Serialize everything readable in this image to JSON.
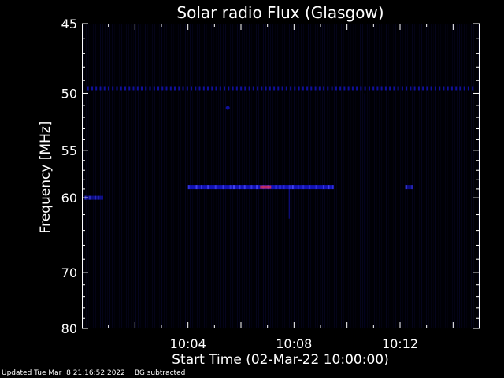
{
  "chart_data": {
    "type": "heatmap",
    "title": "Solar radio Flux (Glasgow)",
    "xlabel": "Start Time (02-Mar-22 10:00:00)",
    "ylabel": "Frequency [MHz]",
    "x_start_minutes": 0,
    "x_end_minutes": 15,
    "x_tick_minutes": [
      4,
      8,
      12
    ],
    "x_ticks": [
      "10:04",
      "10:08",
      "10:12"
    ],
    "y_scale": "reciprocal",
    "ylim": [
      45,
      80
    ],
    "y_ticks": [
      45,
      50,
      55,
      60,
      70,
      80
    ],
    "background_color": "#000005",
    "signal_colors": {
      "low": "#1a1aff",
      "high": "#ff3040"
    },
    "features": [
      {
        "kind": "periodic-band",
        "frequency_mhz": 49.6,
        "t_start": 0.2,
        "t_end": 14.8,
        "intensity": 0.6
      },
      {
        "kind": "band",
        "frequency_mhz": 58.8,
        "t_start": 4.0,
        "t_end": 9.5,
        "intensity": 0.7,
        "peak_minute": 6.9
      },
      {
        "kind": "band",
        "frequency_mhz": 58.8,
        "t_start": 12.2,
        "t_end": 12.5,
        "intensity": 0.5
      },
      {
        "kind": "band",
        "frequency_mhz": 60.0,
        "t_start": 0.1,
        "t_end": 0.8,
        "intensity": 0.5
      },
      {
        "kind": "spot",
        "frequency_mhz": 51.2,
        "minute": 5.5,
        "intensity": 0.6
      },
      {
        "kind": "vline",
        "minute": 7.8,
        "f_start": 59.0,
        "f_end": 62.5,
        "intensity": 0.4
      },
      {
        "kind": "vline",
        "minute": 10.65,
        "f_start": 50.0,
        "f_end": 80.0,
        "intensity": 0.25
      }
    ]
  },
  "footer": {
    "updated": "Updated Tue Mar  8 21:16:52 2022",
    "note": "BG subtracted"
  }
}
